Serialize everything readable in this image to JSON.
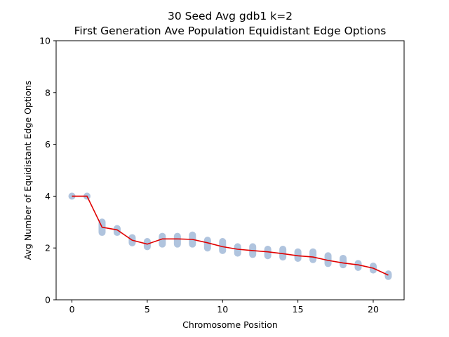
{
  "chart_data": {
    "type": "scatter",
    "title": "30 Seed Avg gdb1 k=2",
    "subtitle": "First Generation Ave Population Equidistant Edge Options",
    "xlabel": "Chromosome Position",
    "ylabel": "Avg Number of Equidistant Edge Options",
    "xlim": [
      -1.05,
      22.05
    ],
    "ylim": [
      0,
      10
    ],
    "xticks": [
      0,
      5,
      10,
      15,
      20
    ],
    "yticks": [
      0,
      2,
      4,
      6,
      8,
      10
    ],
    "grid": false,
    "colors": {
      "scatter": "#b0c4de",
      "line": "#e00000"
    },
    "series": [
      {
        "type": "scatter",
        "x": [
          0,
          1,
          2,
          3,
          4,
          5,
          6,
          7,
          8,
          9,
          10,
          11,
          12,
          13,
          14,
          15,
          16,
          17,
          18,
          19,
          20,
          21
        ],
        "ymin": [
          4.0,
          4.0,
          2.6,
          2.6,
          2.2,
          2.05,
          2.15,
          2.15,
          2.15,
          2.0,
          1.9,
          1.8,
          1.75,
          1.7,
          1.65,
          1.6,
          1.55,
          1.4,
          1.35,
          1.25,
          1.15,
          0.9
        ],
        "ymax": [
          4.0,
          4.0,
          3.0,
          2.75,
          2.4,
          2.25,
          2.45,
          2.45,
          2.5,
          2.3,
          2.25,
          2.05,
          2.05,
          1.95,
          1.95,
          1.85,
          1.85,
          1.7,
          1.6,
          1.4,
          1.3,
          1.0
        ]
      },
      {
        "type": "line",
        "x": [
          0,
          1,
          2,
          3,
          4,
          5,
          6,
          7,
          8,
          9,
          10,
          11,
          12,
          13,
          14,
          15,
          16,
          17,
          18,
          19,
          20,
          21
        ],
        "values": [
          4.0,
          4.0,
          2.8,
          2.7,
          2.3,
          2.15,
          2.35,
          2.35,
          2.33,
          2.2,
          2.05,
          1.95,
          1.9,
          1.85,
          1.78,
          1.7,
          1.65,
          1.52,
          1.42,
          1.35,
          1.22,
          0.95
        ]
      }
    ]
  }
}
